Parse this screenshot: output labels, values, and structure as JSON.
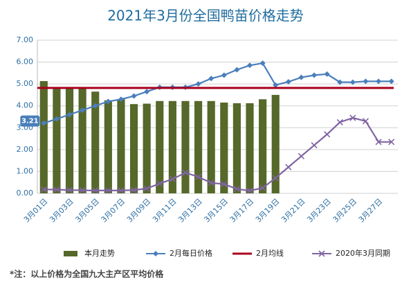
{
  "chart_data": {
    "type": "bar",
    "title": "2021年3月份全国鸭苗价格走势",
    "footnote": "*注：以上价格为全国九大主产区平均价格",
    "categories": [
      "3月01日",
      null,
      "3月03日",
      null,
      "3月05日",
      null,
      "3月07日",
      null,
      "3月09日",
      null,
      "3月11日",
      null,
      "3月13日",
      null,
      "3月15日",
      null,
      "3月17日",
      null,
      "3月19日",
      null,
      "3月21日",
      null,
      "3月23日",
      null,
      "3月25日",
      null,
      "3月27日",
      null
    ],
    "ylim": [
      0,
      7
    ],
    "yticks": [
      {
        "value": 0,
        "label": "0.00"
      },
      {
        "value": 1,
        "label": "1.00"
      },
      {
        "value": 2,
        "label": "2.00"
      },
      {
        "value": 3,
        "label": "3.00"
      },
      {
        "value": 4,
        "label": "4.00"
      },
      {
        "value": 5,
        "label": "5.00"
      },
      {
        "value": 6,
        "label": "6.00"
      },
      {
        "value": 7,
        "label": "7.00"
      }
    ],
    "grid": true,
    "legend": "bottom",
    "series": [
      {
        "name": "本月走势",
        "type": "bar",
        "color": "#56682a",
        "values": [
          5.13,
          4.8,
          4.8,
          4.8,
          4.65,
          4.25,
          4.3,
          4.08,
          4.1,
          4.22,
          4.22,
          4.22,
          4.22,
          4.22,
          4.15,
          4.12,
          4.12,
          4.3,
          4.5,
          null,
          null,
          null,
          null,
          null,
          null,
          null,
          null,
          null
        ]
      },
      {
        "name": "2月每日价格",
        "type": "line",
        "marker": "diamond",
        "color": "#4a7ebb",
        "values": [
          3.21,
          3.4,
          3.6,
          3.8,
          4.0,
          4.2,
          4.3,
          4.45,
          4.65,
          4.85,
          4.85,
          4.85,
          5.0,
          5.25,
          5.4,
          5.65,
          5.85,
          5.95,
          4.95,
          5.1,
          5.3,
          5.4,
          5.45,
          5.08,
          5.08,
          5.12,
          5.12,
          5.12
        ],
        "value_labels": [
          "3.21",
          null,
          null,
          null,
          null,
          null,
          null,
          null,
          null,
          null,
          null,
          null,
          null,
          null,
          null,
          null,
          null,
          null,
          null,
          null,
          null,
          null,
          null,
          null,
          null,
          null,
          null,
          null
        ]
      },
      {
        "name": "2月均线",
        "type": "hline",
        "color": "#a8001c",
        "value": 4.82
      },
      {
        "name": "2020年3月同期",
        "type": "line",
        "marker": "x",
        "color": "#8064a2",
        "values": [
          0.18,
          0.17,
          0.15,
          0.14,
          0.13,
          0.13,
          0.13,
          0.15,
          0.22,
          0.45,
          0.65,
          0.95,
          0.75,
          0.48,
          0.42,
          0.2,
          0.12,
          0.25,
          0.7,
          1.2,
          1.7,
          2.2,
          2.7,
          3.25,
          3.45,
          3.3,
          2.35,
          2.35
        ]
      }
    ]
  }
}
